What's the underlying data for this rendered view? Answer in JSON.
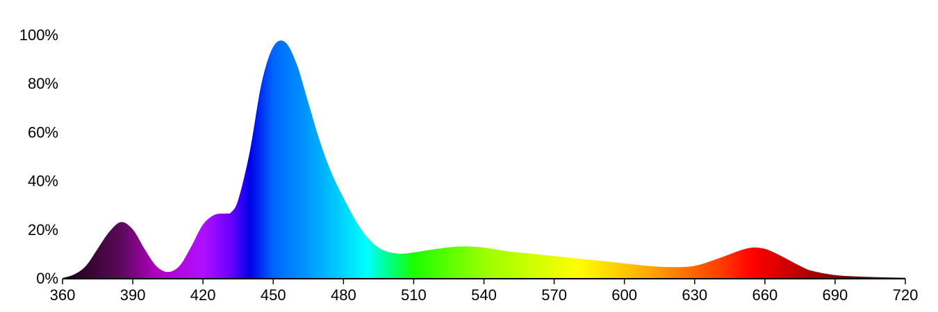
{
  "chart_data": {
    "type": "area",
    "title": "",
    "xlabel": "",
    "ylabel": "",
    "xlim": [
      360,
      720
    ],
    "ylim": [
      0,
      100
    ],
    "grid": false,
    "x_ticks": [
      360,
      390,
      420,
      450,
      480,
      510,
      540,
      570,
      600,
      630,
      660,
      690,
      720
    ],
    "y_ticks": [
      0,
      20,
      40,
      60,
      80,
      100
    ],
    "x_tick_labels": [
      "360",
      "390",
      "420",
      "450",
      "480",
      "510",
      "540",
      "570",
      "600",
      "630",
      "660",
      "690",
      "720"
    ],
    "y_tick_labels": [
      "0%",
      "20%",
      "40%",
      "60%",
      "80%",
      "100%"
    ],
    "series": [
      {
        "x": [
          360,
          365,
          370,
          375,
          380,
          385,
          390,
          395,
          400,
          405,
          410,
          415,
          420,
          425,
          430,
          432,
          435,
          440,
          445,
          450,
          455,
          460,
          465,
          470,
          475,
          480,
          485,
          490,
          495,
          500,
          505,
          510,
          520,
          530,
          540,
          550,
          560,
          570,
          580,
          590,
          600,
          610,
          620,
          630,
          640,
          650,
          655,
          660,
          665,
          670,
          675,
          680,
          690,
          700,
          710,
          720
        ],
        "y": [
          0,
          1.5,
          5,
          12,
          19,
          23,
          20,
          12,
          5,
          2.5,
          5,
          13,
          22,
          26,
          26.5,
          27,
          32,
          52,
          80,
          95,
          97,
          88,
          72,
          56,
          43,
          33,
          24,
          17,
          12.5,
          10.5,
          10,
          10.5,
          12,
          13,
          12.5,
          11,
          10,
          9,
          8,
          7,
          6,
          5,
          4.5,
          5,
          8,
          11.5,
          12.5,
          12,
          10,
          7.5,
          5,
          3,
          1.2,
          0.6,
          0.3,
          0.1
        ]
      }
    ],
    "gradient_stops": [
      {
        "wavelength": 360,
        "color": "#1a0010"
      },
      {
        "wavelength": 385,
        "color": "#5a0a5a"
      },
      {
        "wavelength": 400,
        "color": "#b000c0"
      },
      {
        "wavelength": 420,
        "color": "#b010ff"
      },
      {
        "wavelength": 432,
        "color": "#6a00ff"
      },
      {
        "wavelength": 440,
        "color": "#0000e6"
      },
      {
        "wavelength": 450,
        "color": "#0066ff"
      },
      {
        "wavelength": 465,
        "color": "#0099ff"
      },
      {
        "wavelength": 490,
        "color": "#00ffff"
      },
      {
        "wavelength": 500,
        "color": "#00ff80"
      },
      {
        "wavelength": 510,
        "color": "#1aff00"
      },
      {
        "wavelength": 540,
        "color": "#99ff00"
      },
      {
        "wavelength": 580,
        "color": "#ffff00"
      },
      {
        "wavelength": 610,
        "color": "#ffaa00"
      },
      {
        "wavelength": 640,
        "color": "#ff4000"
      },
      {
        "wavelength": 655,
        "color": "#ff0000"
      },
      {
        "wavelength": 690,
        "color": "#8a0000"
      },
      {
        "wavelength": 720,
        "color": "#3a0000"
      }
    ]
  }
}
